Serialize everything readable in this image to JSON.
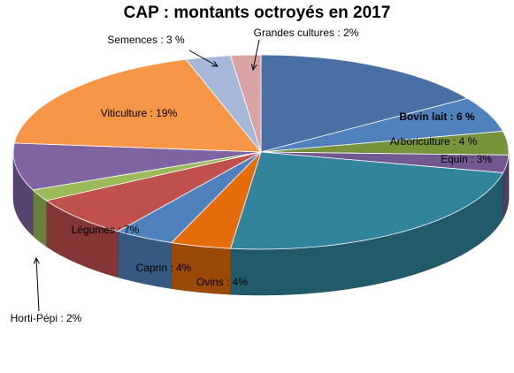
{
  "chart_data": {
    "type": "pie",
    "title": "CAP : montants octroyés en 2017",
    "slices": [
      {
        "label": "",
        "value": 16,
        "color": "#4A6FA5"
      },
      {
        "label": "Bovin lait : 6 %",
        "value": 6,
        "color": "#4F81BD",
        "bold": true
      },
      {
        "label": "Arboriculture : 4 %",
        "value": 4,
        "color": "#77933C"
      },
      {
        "label": "Equin : 3%",
        "value": 3,
        "color": "#71588F"
      },
      {
        "label": "",
        "value": 24,
        "color": "#31849B"
      },
      {
        "label": "Ovins : 4%",
        "value": 4,
        "color": "#E46C0A"
      },
      {
        "label": "Caprin : 4%",
        "value": 4,
        "color": "#4F81BD"
      },
      {
        "label": "Légumes : 7%",
        "value": 7,
        "color": "#C0504D"
      },
      {
        "label": "Horti-Pépi : 2%",
        "value": 2,
        "color": "#9BBB59"
      },
      {
        "label": "",
        "value": 8,
        "color": "#8064A2"
      },
      {
        "label": "Viticulture : 19%",
        "value": 19,
        "color": "#F79646"
      },
      {
        "label": "Semences : 3 %",
        "value": 3,
        "color": "#A6B8DA"
      },
      {
        "label": "Grandes cultures : 2%",
        "value": 2,
        "color": "#D9A3A3"
      }
    ]
  }
}
